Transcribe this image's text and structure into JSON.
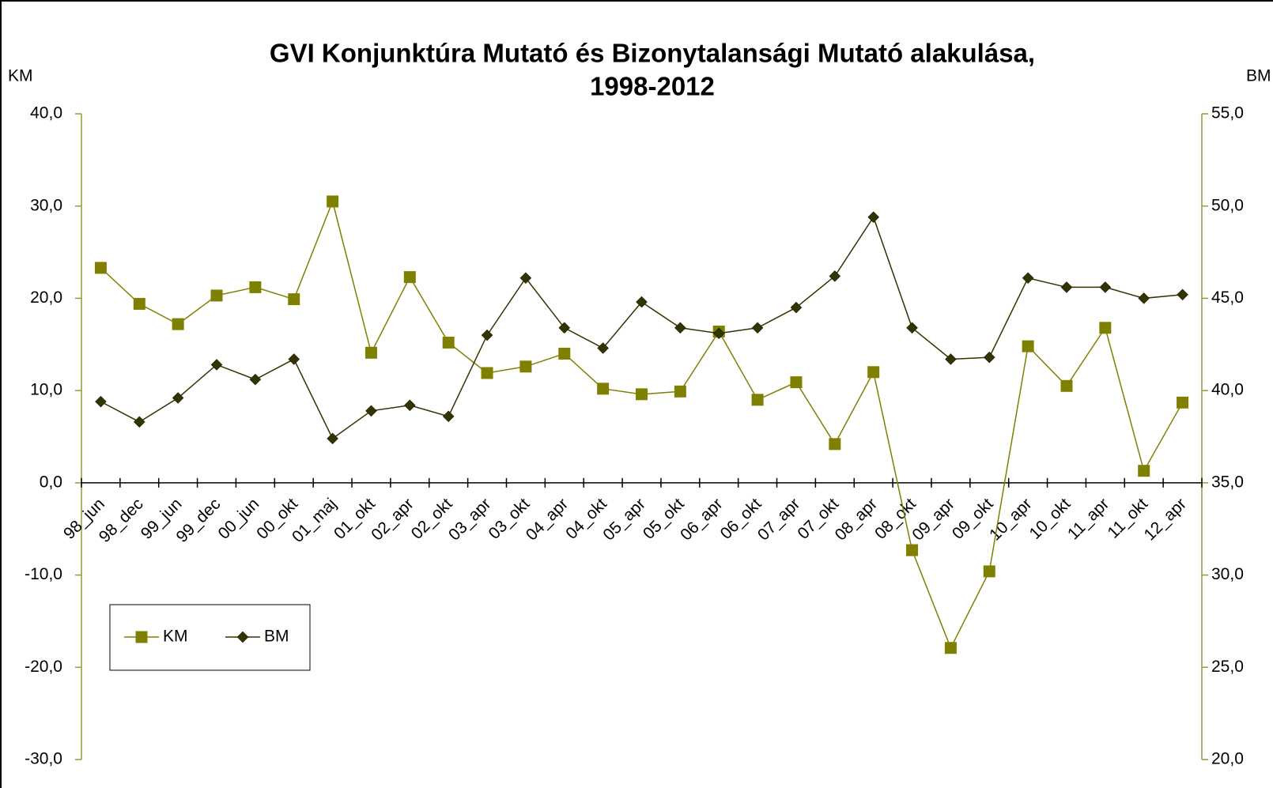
{
  "chart_data": {
    "type": "line",
    "title": [
      "GVI Konjunktúra Mutató és Bizonytalansági Mutató alakulása,",
      "1998-2012"
    ],
    "ylabel": "KM",
    "y2label": "BM",
    "categories": [
      "98_jun",
      "98_dec",
      "99_jun",
      "99_dec",
      "00_jun",
      "00_okt",
      "01_maj",
      "01_okt",
      "02_apr",
      "02_okt",
      "03_apr",
      "03_okt",
      "04_apr",
      "04_okt",
      "05_apr",
      "05_okt",
      "06_apr",
      "06_okt",
      "07_apr",
      "07_okt",
      "08_apr",
      "08_okt",
      "09_apr",
      "09_okt",
      "10_apr",
      "10_okt",
      "11_apr",
      "11_okt",
      "12_apr"
    ],
    "series": [
      {
        "name": "KM",
        "color": "#808000",
        "marker": "square",
        "values": [
          23.3,
          19.4,
          17.2,
          20.3,
          21.2,
          19.9,
          30.5,
          14.1,
          22.3,
          15.2,
          11.9,
          12.6,
          14.0,
          10.2,
          9.6,
          9.9,
          16.4,
          9.0,
          10.9,
          4.2,
          12.0,
          -7.3,
          -17.9,
          -9.6,
          14.8,
          10.5,
          16.8,
          1.3,
          8.7
        ]
      },
      {
        "name": "BM",
        "color": "#333300",
        "marker": "diamond",
        "axis": "y2",
        "values": [
          39.4,
          38.3,
          39.6,
          41.4,
          40.6,
          41.7,
          37.4,
          38.9,
          39.2,
          38.6,
          43.0,
          46.1,
          43.4,
          42.3,
          44.8,
          43.4,
          43.1,
          43.4,
          44.5,
          46.2,
          49.4,
          43.4,
          41.7,
          41.8,
          46.1,
          45.6,
          45.6,
          45.0,
          45.2
        ]
      }
    ],
    "ylim": [
      -30,
      40
    ],
    "yticks": [
      {
        "value": -30,
        "label": "-30,0"
      },
      {
        "value": -20,
        "label": "-20,0"
      },
      {
        "value": -10,
        "label": "-10,0"
      },
      {
        "value": 0,
        "label": "0,0"
      },
      {
        "value": 10,
        "label": "10,0"
      },
      {
        "value": 20,
        "label": "20,0"
      },
      {
        "value": 30,
        "label": "30,0"
      },
      {
        "value": 40,
        "label": "40,0"
      }
    ],
    "y2lim": [
      20,
      55
    ],
    "y2ticks": [
      {
        "value": 20,
        "label": "20,0"
      },
      {
        "value": 25,
        "label": "25,0"
      },
      {
        "value": 30,
        "label": "30,0"
      },
      {
        "value": 35,
        "label": "35,0"
      },
      {
        "value": 40,
        "label": "40,0"
      },
      {
        "value": 45,
        "label": "45,0"
      },
      {
        "value": 50,
        "label": "50,0"
      },
      {
        "value": 55,
        "label": "55,0"
      }
    ],
    "grid": false,
    "legend": "lower left"
  }
}
